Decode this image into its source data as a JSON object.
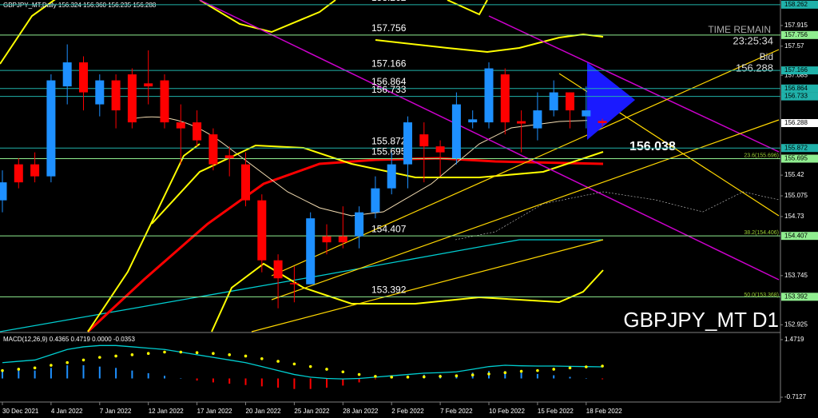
{
  "chart_data": {
    "type": "candlestick",
    "title": "GBPJPY_MT,Daily 156.324 156.360 156.235 156.288",
    "watermark": "GBPJPY_MT D1",
    "up_color": "#1e90ff",
    "down_color": "#ff0000",
    "categories": [
      "30 Dec 2021",
      null,
      null,
      "4 Jan 2022",
      null,
      null,
      "7 Jan 2022",
      null,
      null,
      "12 Jan 2022",
      null,
      null,
      "17 Jan 2022",
      null,
      null,
      "20 Jan 2022",
      null,
      null,
      "25 Jan 2022",
      null,
      null,
      "28 Jan 2022",
      null,
      null,
      "2 Feb 2022",
      null,
      null,
      "7 Feb 2022",
      null,
      null,
      "10 Feb 2022",
      null,
      null,
      "15 Feb 2022",
      null,
      null,
      "18 Feb 2022",
      null
    ],
    "open": [
      155.0,
      155.6,
      155.6,
      155.4,
      156.9,
      157.3,
      156.6,
      157.0,
      157.1,
      156.95,
      157.0,
      156.3,
      156.3,
      156.1,
      155.75,
      155.6,
      155.0,
      154.0,
      153.62,
      153.6,
      154.4,
      154.4,
      154.4,
      154.8,
      155.2,
      155.6,
      156.1,
      155.9,
      155.7,
      156.3,
      156.3,
      157.1,
      156.32,
      156.2,
      156.5,
      156.8,
      156.4,
      156.324
    ],
    "high": [
      155.5,
      155.7,
      155.8,
      157.1,
      157.6,
      157.4,
      157.1,
      157.1,
      157.2,
      157.5,
      157.1,
      156.6,
      156.5,
      156.2,
      155.9,
      155.8,
      155.1,
      154.1,
      153.9,
      154.8,
      154.6,
      154.9,
      154.9,
      155.4,
      155.8,
      156.4,
      156.3,
      156.0,
      156.8,
      156.5,
      157.3,
      157.2,
      156.5,
      156.8,
      157.0,
      156.8,
      156.9,
      156.36
    ],
    "low": [
      154.8,
      155.2,
      155.3,
      155.3,
      156.6,
      156.5,
      156.4,
      156.2,
      156.2,
      156.6,
      156.2,
      155.6,
      155.9,
      155.5,
      155.4,
      154.9,
      153.8,
      153.2,
      153.3,
      153.6,
      154.1,
      154.2,
      154.2,
      154.7,
      155.1,
      155.2,
      155.3,
      155.4,
      155.6,
      156.2,
      156.2,
      156.1,
      155.8,
      156.0,
      156.4,
      156.2,
      156.2,
      156.235
    ],
    "close": [
      155.3,
      155.3,
      155.4,
      157.0,
      157.3,
      156.8,
      157.0,
      156.5,
      156.3,
      156.9,
      156.3,
      156.2,
      156.0,
      155.6,
      155.7,
      155.0,
      154.0,
      153.7,
      153.6,
      154.7,
      154.3,
      154.3,
      154.8,
      155.2,
      155.6,
      156.3,
      155.9,
      155.8,
      156.6,
      156.35,
      157.2,
      156.3,
      156.28,
      156.5,
      156.8,
      156.5,
      156.5,
      156.288
    ],
    "ylim": [
      152.81,
      158.34
    ],
    "yticks": [
      157.915,
      157.57,
      157.085,
      155.42,
      155.075,
      154.73,
      153.745,
      152.925
    ],
    "levels": [
      {
        "value": 158.262,
        "color": "#20b2aa"
      },
      {
        "value": 157.756,
        "color": "#90ee90"
      },
      {
        "value": 157.166,
        "color": "#20b2aa"
      },
      {
        "value": 156.864,
        "color": "#20b2aa"
      },
      {
        "value": 156.733,
        "color": "#20b2aa"
      },
      {
        "value": 155.872,
        "color": "#20b2aa"
      },
      {
        "value": 155.695,
        "color": "#90ee90"
      },
      {
        "value": 154.407,
        "color": "#90ee90"
      },
      {
        "value": 153.392,
        "color": "#90ee90"
      }
    ],
    "fib_labels": [
      {
        "value": 155.696,
        "label": "23.6(155.696)"
      },
      {
        "value": 154.406,
        "label": "38.2(154.406)"
      },
      {
        "value": 153.368,
        "label": "50.0(153.368)"
      }
    ],
    "time_remain_label": "TIME REMAIN",
    "time_remain": "23:25:34",
    "bid_label": "Bid",
    "bid": 156.288,
    "projection": 156.038,
    "macd": {
      "title": "MACD(12,26,9) 0.4365 0.4719 0.0000 -0.0353",
      "ylim": [
        -0.804,
        1.684
      ],
      "yticks": [
        1.4719,
        -0.7127
      ],
      "histogram": [
        0.3,
        0.3,
        0.3,
        0.4,
        0.5,
        0.5,
        0.45,
        0.4,
        0.3,
        0.2,
        0.1,
        0.0,
        -0.08,
        -0.15,
        -0.2,
        -0.25,
        -0.3,
        -0.35,
        -0.4,
        -0.4,
        -0.35,
        -0.27,
        -0.15,
        -0.03,
        0.05,
        0.1,
        0.14,
        0.14,
        0.15,
        0.22,
        0.28,
        0.28,
        0.21,
        0.17,
        0.12,
        0.06,
        0.01,
        -0.03
      ],
      "line": [
        0.6,
        0.65,
        0.7,
        0.9,
        1.1,
        1.2,
        1.25,
        1.25,
        1.2,
        1.15,
        1.1,
        1.0,
        0.9,
        0.8,
        0.7,
        0.6,
        0.45,
        0.3,
        0.15,
        0.05,
        0.0,
        -0.02,
        0.0,
        0.05,
        0.1,
        0.15,
        0.2,
        0.22,
        0.25,
        0.35,
        0.45,
        0.5,
        0.48,
        0.47,
        0.47,
        0.46,
        0.45,
        0.44
      ],
      "signal": [
        0.3,
        0.35,
        0.4,
        0.5,
        0.6,
        0.7,
        0.8,
        0.85,
        0.9,
        0.95,
        1.0,
        1.0,
        0.98,
        0.95,
        0.9,
        0.85,
        0.75,
        0.65,
        0.55,
        0.45,
        0.35,
        0.25,
        0.15,
        0.08,
        0.05,
        0.05,
        0.06,
        0.08,
        0.1,
        0.13,
        0.17,
        0.22,
        0.27,
        0.3,
        0.35,
        0.4,
        0.44,
        0.47
      ],
      "line_color": "#00ced1",
      "signal_color": "#ffff00"
    }
  }
}
